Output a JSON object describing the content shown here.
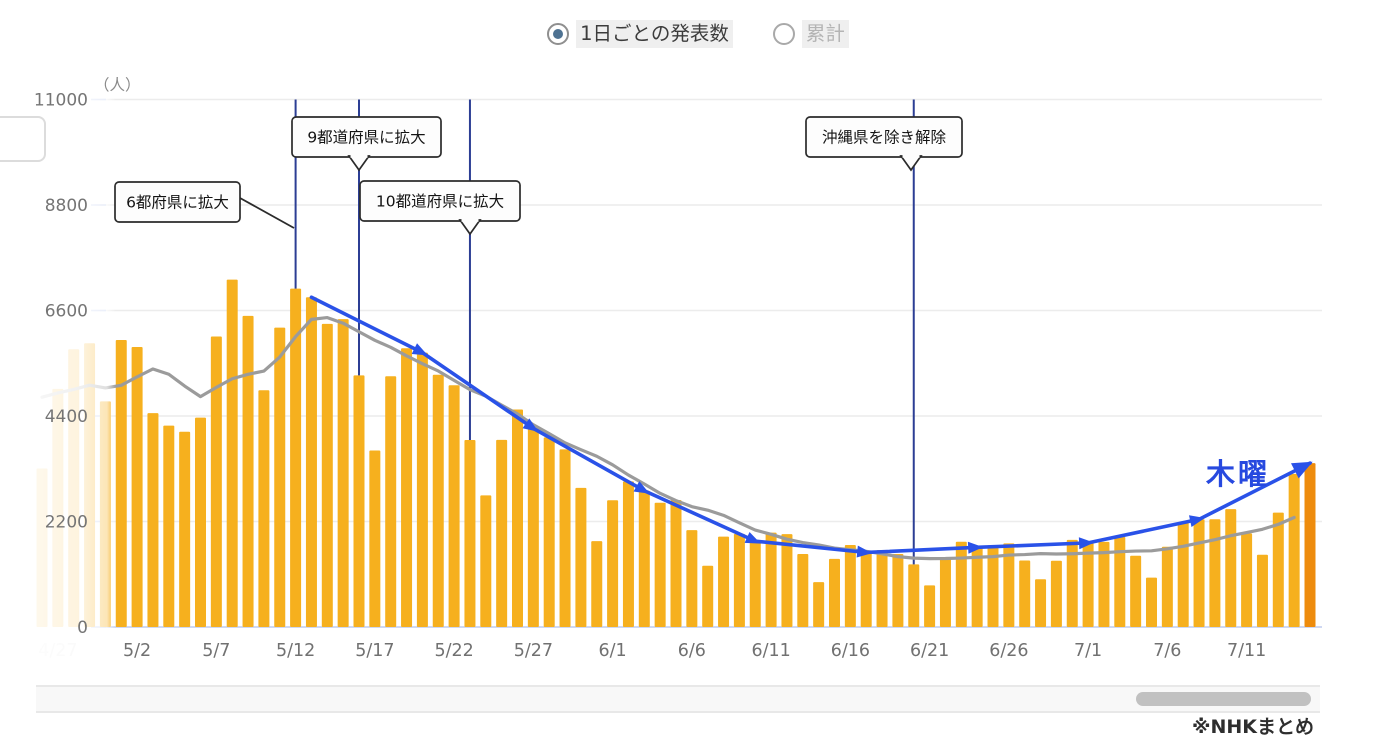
{
  "view_toggle": {
    "options": [
      {
        "label": "1日ごとの発表数",
        "selected": true
      },
      {
        "label": "累計",
        "selected": false
      }
    ]
  },
  "source": "※NHKまとめ",
  "chart_data": {
    "type": "bar",
    "title": "1日ごとの発表数",
    "unit_label": "（人）",
    "ylabel": "人",
    "ylim": [
      0,
      11000
    ],
    "yticks": [
      0,
      2200,
      4400,
      6600,
      8800,
      11000
    ],
    "grid": true,
    "x_ticks": [
      {
        "label": "4/27",
        "faded": true
      },
      {
        "label": "5/2",
        "faded": false
      },
      {
        "label": "5/7",
        "faded": false
      },
      {
        "label": "5/12",
        "faded": false
      },
      {
        "label": "5/17",
        "faded": false
      },
      {
        "label": "5/22",
        "faded": false
      },
      {
        "label": "5/27",
        "faded": false
      },
      {
        "label": "6/1",
        "faded": false
      },
      {
        "label": "6/6",
        "faded": false
      },
      {
        "label": "6/11",
        "faded": false
      },
      {
        "label": "6/16",
        "faded": false
      },
      {
        "label": "6/21",
        "faded": false
      },
      {
        "label": "6/26",
        "faded": false
      },
      {
        "label": "7/1",
        "faded": false
      },
      {
        "label": "7/6",
        "faded": false
      },
      {
        "label": "7/11",
        "faded": false
      }
    ],
    "categories": [
      "4/26",
      "4/27",
      "4/28",
      "4/29",
      "4/30",
      "5/1",
      "5/2",
      "5/3",
      "5/4",
      "5/5",
      "5/6",
      "5/7",
      "5/8",
      "5/9",
      "5/10",
      "5/11",
      "5/12",
      "5/13",
      "5/14",
      "5/15",
      "5/16",
      "5/17",
      "5/18",
      "5/19",
      "5/20",
      "5/21",
      "5/22",
      "5/23",
      "5/24",
      "5/25",
      "5/26",
      "5/27",
      "5/28",
      "5/29",
      "5/30",
      "5/31",
      "6/1",
      "6/2",
      "6/3",
      "6/4",
      "6/5",
      "6/6",
      "6/7",
      "6/8",
      "6/9",
      "6/10",
      "6/11",
      "6/12",
      "6/13",
      "6/14",
      "6/15",
      "6/16",
      "6/17",
      "6/18",
      "6/19",
      "6/20",
      "6/21",
      "6/22",
      "6/23",
      "6/24",
      "6/25",
      "6/26",
      "6/27",
      "6/28",
      "6/29",
      "6/30",
      "7/1",
      "7/2",
      "7/3",
      "7/4",
      "7/5",
      "7/6",
      "7/7",
      "7/8",
      "7/9",
      "7/10",
      "7/11",
      "7/12",
      "7/13",
      "7/14",
      "7/15"
    ],
    "series": [
      {
        "name": "daily_new_cases",
        "type": "bar",
        "values": [
          3305,
          4965,
          5792,
          5918,
          4706,
          5986,
          5839,
          4459,
          4199,
          4071,
          4367,
          6057,
          7244,
          6489,
          4938,
          6243,
          7057,
          6876,
          6320,
          6421,
          5247,
          3680,
          5229,
          5814,
          5721,
          5261,
          5040,
          3899,
          2744,
          3901,
          4536,
          4141,
          3955,
          3705,
          2900,
          1791,
          2644,
          3037,
          2842,
          2590,
          2648,
          2021,
          1277,
          1884,
          1942,
          1790,
          1969,
          1937,
          1521,
          937,
          1420,
          1709,
          1554,
          1605,
          1521,
          1307,
          868,
          1435,
          1779,
          1661,
          1706,
          1744,
          1387,
          996,
          1382,
          1817,
          1754,
          1774,
          1879,
          1485,
          1030,
          1673,
          2180,
          2246,
          2248,
          2458,
          1953,
          1506,
          2386,
          3194,
          3418
        ]
      },
      {
        "name": "seven_day_average",
        "type": "line",
        "values": [
          4792,
          4881,
          4953,
          5043,
          4985,
          5040,
          5216,
          5381,
          5271,
          5025,
          4804,
          4997,
          5177,
          5270,
          5338,
          5630,
          6056,
          6415,
          6452,
          6335,
          6157,
          5978,
          5833,
          5655,
          5490,
          5339,
          5142,
          4949,
          4815,
          4626,
          4443,
          4217,
          4031,
          3840,
          3697,
          3561,
          3382,
          3168,
          2982,
          2787,
          2636,
          2510,
          2437,
          2328,
          2172,
          2022,
          1933,
          1831,
          1760,
          1711,
          1645,
          1612,
          1578,
          1526,
          1467,
          1436,
          1426,
          1428,
          1438,
          1454,
          1468,
          1500,
          1511,
          1530,
          1522,
          1528,
          1541,
          1551,
          1570,
          1584,
          1589,
          1630,
          1682,
          1752,
          1820,
          1903,
          1970,
          2038,
          2140,
          2284
        ]
      },
      {
        "name": "thursday_trend",
        "type": "line",
        "label": "木曜",
        "dates": [
          "5/13",
          "5/20",
          "5/27",
          "6/3",
          "6/10",
          "6/17",
          "6/24",
          "7/1",
          "7/8",
          "7/15"
        ],
        "values": [
          6876,
          5721,
          4141,
          2842,
          1790,
          1554,
          1661,
          1754,
          2246,
          3418
        ]
      }
    ],
    "annotations": [
      {
        "text": "6都府県に拡大",
        "date": "5/12"
      },
      {
        "text": "9都道府県に拡大",
        "date": "5/16"
      },
      {
        "text": "10都道府県に拡大",
        "date": "5/23"
      },
      {
        "text": "沖縄県を除き解除",
        "date": "6/20"
      }
    ],
    "thursday_label": "木曜",
    "colors": {
      "bar": "#f6b01e",
      "bar_last": "#ee8c0d",
      "avg_line": "#9b9b9b",
      "thursday_line": "#2a52e8",
      "thursday_text": "#2749df",
      "event_vline": "#2c3e94",
      "gridline": "#ececec",
      "axis_line": "#bfcbee",
      "tick_text": "#717171",
      "faded_tick_text": "#dcdcdc",
      "annotation_border": "#2b2b2b",
      "annotation_bg": "#fdfdfd"
    },
    "legend_position": "none"
  }
}
